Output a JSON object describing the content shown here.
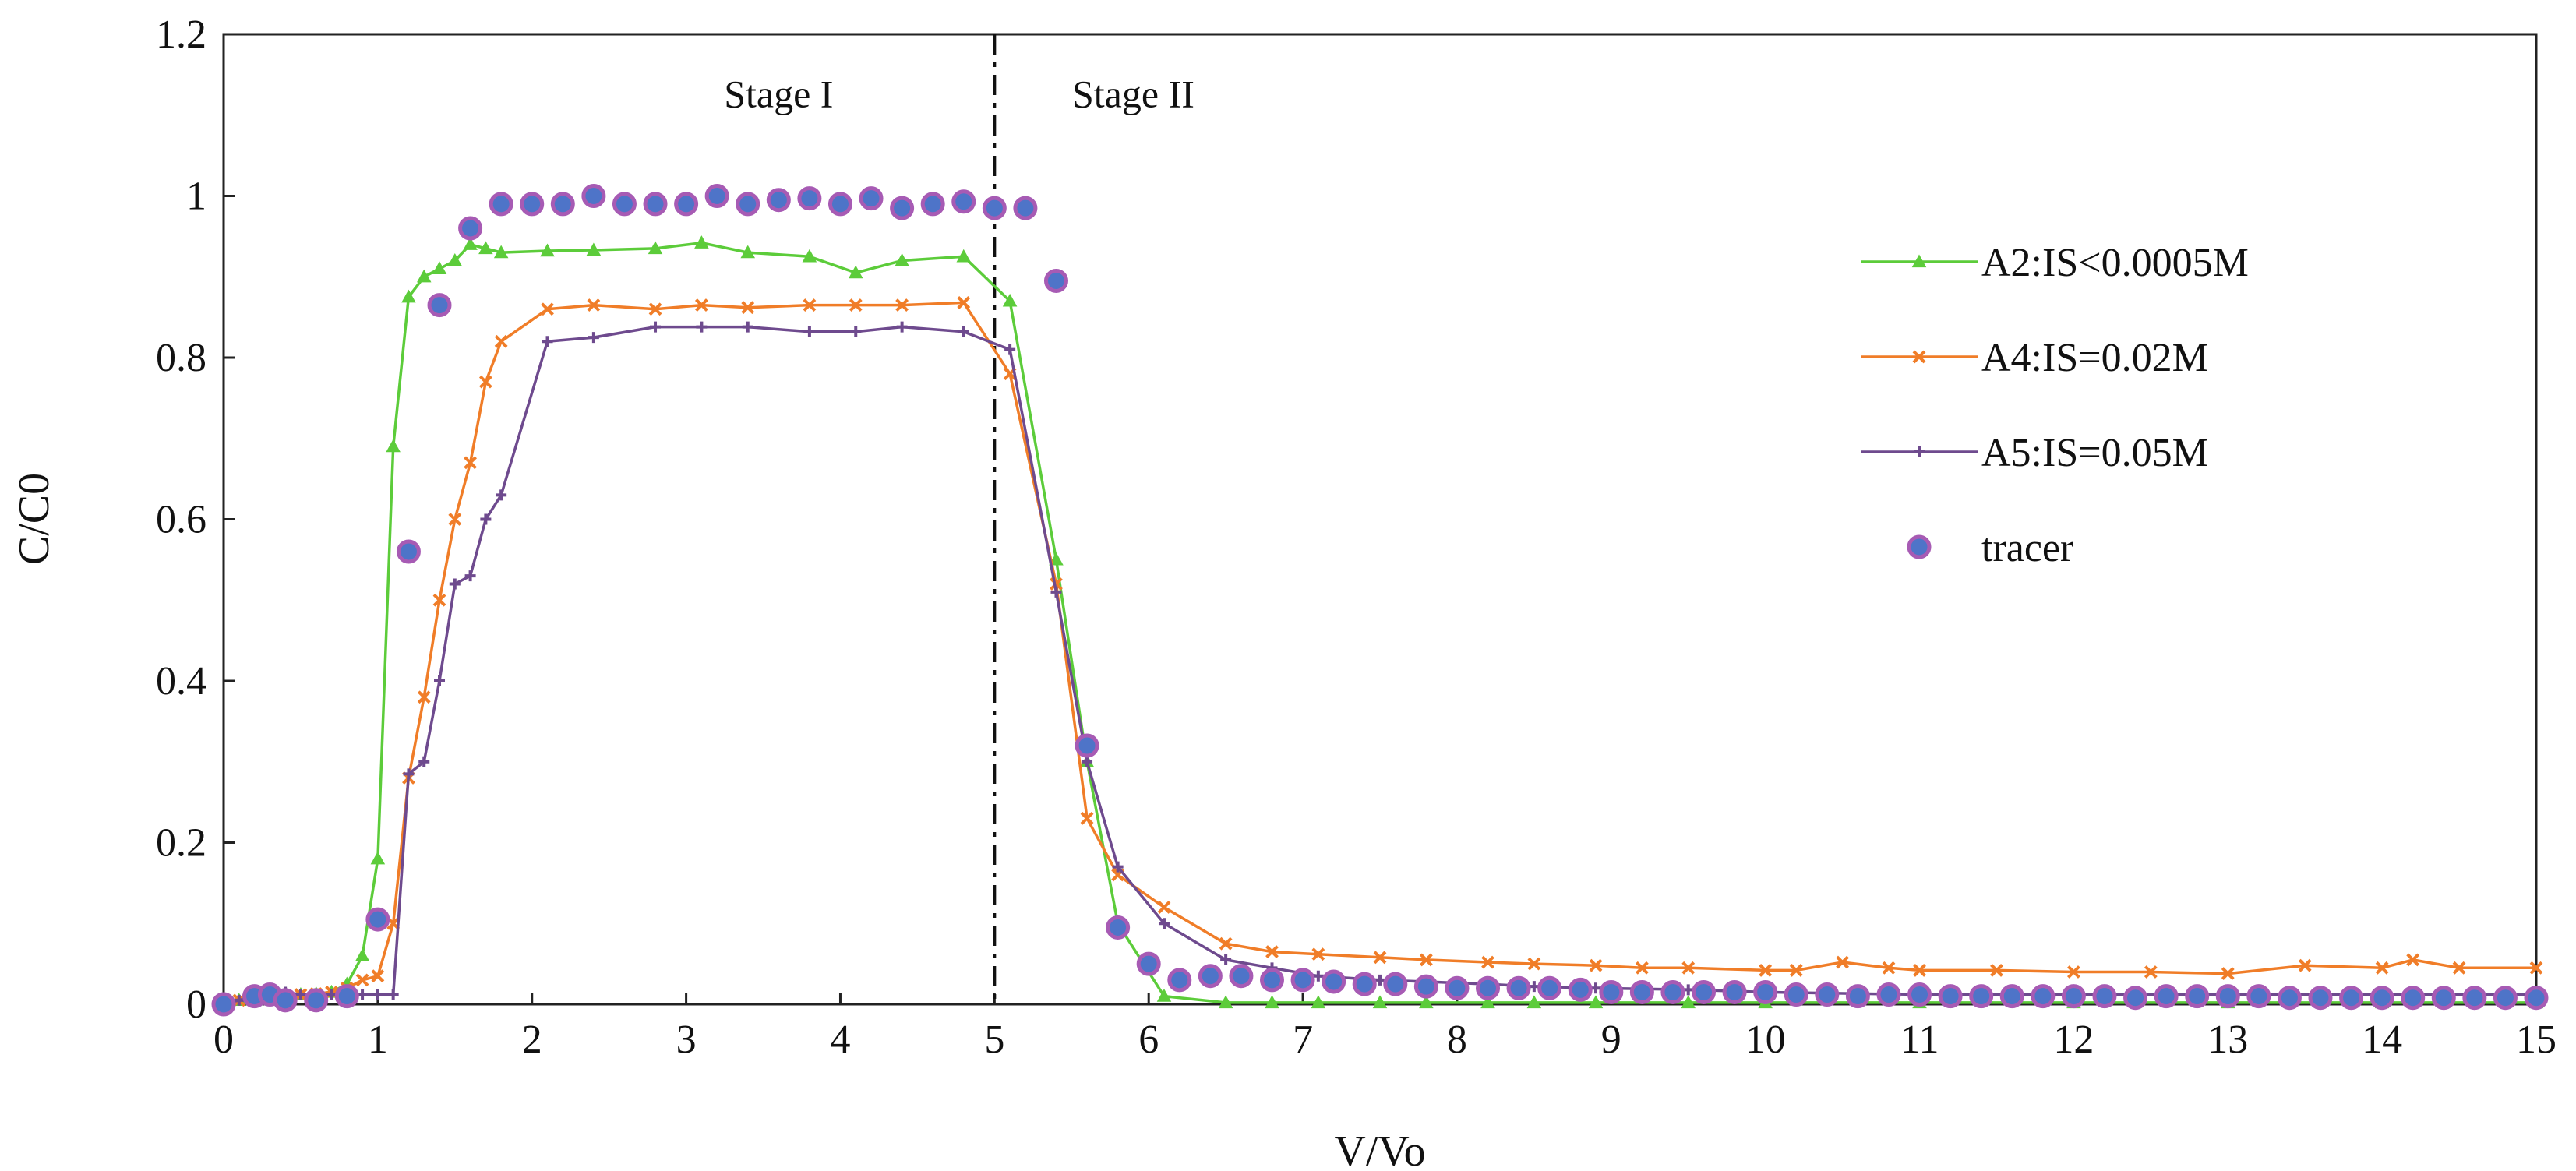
{
  "chart_data": {
    "type": "line",
    "title": "",
    "xlabel": "V/Vo",
    "ylabel": "C/C0",
    "xlim": [
      0,
      15
    ],
    "ylim": [
      0,
      1.2
    ],
    "xticks": [
      0,
      1,
      2,
      3,
      4,
      5,
      6,
      7,
      8,
      9,
      10,
      11,
      12,
      13,
      14,
      15
    ],
    "yticks": [
      0,
      0.2,
      0.4,
      0.6,
      0.8,
      1,
      1.2
    ],
    "ytick_labels": [
      "0",
      "0.2",
      "0.4",
      "0.6",
      "0.8",
      "1",
      "1.2"
    ],
    "grid": false,
    "legend_position": "right",
    "annotations": [
      {
        "text": "Stage I",
        "x": 3.6,
        "y": 1.11
      },
      {
        "text": "Stage II",
        "x": 5.9,
        "y": 1.11
      }
    ],
    "divider_x": 5,
    "series": [
      {
        "name": "A2:IS<0.0005M",
        "color": "#5ccc3a",
        "marker": "triangle",
        "x": [
          0,
          0.1,
          0.2,
          0.3,
          0.4,
          0.5,
          0.6,
          0.7,
          0.8,
          0.9,
          1.0,
          1.1,
          1.2,
          1.3,
          1.4,
          1.5,
          1.6,
          1.7,
          1.8,
          2.1,
          2.4,
          2.8,
          3.1,
          3.4,
          3.8,
          4.1,
          4.4,
          4.8,
          5.1,
          5.4,
          5.6,
          5.8,
          6.1,
          6.5,
          6.8,
          7.1,
          7.5,
          7.8,
          8.2,
          8.5,
          8.9,
          9.5,
          10,
          11,
          12,
          13,
          14,
          15
        ],
        "y": [
          0,
          0.005,
          0.01,
          0.01,
          0.01,
          0.012,
          0.013,
          0.015,
          0.025,
          0.06,
          0.18,
          0.69,
          0.875,
          0.9,
          0.91,
          0.92,
          0.94,
          0.935,
          0.93,
          0.932,
          0.933,
          0.935,
          0.942,
          0.93,
          0.925,
          0.905,
          0.92,
          0.925,
          0.87,
          0.55,
          0.3,
          0.1,
          0.01,
          0.002,
          0.002,
          0.002,
          0.002,
          0.002,
          0.002,
          0.002,
          0.002,
          0.002,
          0.002,
          0.002,
          0.002,
          0.002,
          0.002,
          0.002
        ]
      },
      {
        "name": "A4:IS=0.02M",
        "color": "#f07d28",
        "marker": "x",
        "x": [
          0,
          0.1,
          0.2,
          0.3,
          0.4,
          0.5,
          0.6,
          0.7,
          0.8,
          0.9,
          1.0,
          1.1,
          1.2,
          1.3,
          1.4,
          1.5,
          1.6,
          1.7,
          1.8,
          2.1,
          2.4,
          2.8,
          3.1,
          3.4,
          3.8,
          4.1,
          4.4,
          4.8,
          5.1,
          5.4,
          5.6,
          5.8,
          6.1,
          6.5,
          6.8,
          7.1,
          7.5,
          7.8,
          8.2,
          8.5,
          8.9,
          9.2,
          9.5,
          10,
          10.2,
          10.5,
          10.8,
          11,
          11.5,
          12,
          12.5,
          13,
          13.5,
          14,
          14.2,
          14.5,
          15
        ],
        "y": [
          0,
          0.005,
          0.008,
          0.01,
          0.01,
          0.012,
          0.013,
          0.015,
          0.02,
          0.03,
          0.035,
          0.1,
          0.28,
          0.38,
          0.5,
          0.6,
          0.67,
          0.77,
          0.82,
          0.86,
          0.865,
          0.86,
          0.865,
          0.862,
          0.865,
          0.865,
          0.865,
          0.868,
          0.78,
          0.52,
          0.23,
          0.16,
          0.12,
          0.075,
          0.065,
          0.062,
          0.058,
          0.055,
          0.052,
          0.05,
          0.048,
          0.045,
          0.045,
          0.042,
          0.042,
          0.052,
          0.045,
          0.042,
          0.042,
          0.04,
          0.04,
          0.038,
          0.048,
          0.045,
          0.055,
          0.045,
          0.045
        ]
      },
      {
        "name": "A5:IS=0.05M",
        "color": "#6e4a8e",
        "marker": "plus",
        "x": [
          0,
          0.1,
          0.2,
          0.3,
          0.4,
          0.5,
          0.6,
          0.7,
          0.8,
          0.9,
          1.0,
          1.1,
          1.2,
          1.3,
          1.4,
          1.5,
          1.6,
          1.7,
          1.8,
          2.1,
          2.4,
          2.8,
          3.1,
          3.4,
          3.8,
          4.1,
          4.4,
          4.8,
          5.1,
          5.4,
          5.6,
          5.8,
          6.1,
          6.5,
          6.8,
          7.1,
          7.5,
          7.8,
          8.2,
          8.5,
          8.9,
          9.5,
          10,
          11,
          12,
          13,
          14,
          15
        ],
        "y": [
          0,
          0.005,
          0.01,
          0.012,
          0.015,
          0.012,
          0.01,
          0.012,
          0.012,
          0.012,
          0.012,
          0.012,
          0.285,
          0.3,
          0.4,
          0.52,
          0.53,
          0.6,
          0.63,
          0.82,
          0.825,
          0.838,
          0.838,
          0.838,
          0.832,
          0.832,
          0.838,
          0.832,
          0.81,
          0.51,
          0.3,
          0.17,
          0.1,
          0.055,
          0.045,
          0.035,
          0.03,
          0.028,
          0.025,
          0.022,
          0.02,
          0.018,
          0.015,
          0.012,
          0.012,
          0.012,
          0.012,
          0.012
        ]
      },
      {
        "name": "tracer",
        "color": "#4e74c8",
        "edge": "#a75bb4",
        "marker": "circle",
        "x": [
          0,
          0.2,
          0.3,
          0.4,
          0.6,
          0.8,
          1.0,
          1.2,
          1.4,
          1.6,
          1.8,
          2.0,
          2.2,
          2.4,
          2.6,
          2.8,
          3.0,
          3.2,
          3.4,
          3.6,
          3.8,
          4.0,
          4.2,
          4.4,
          4.6,
          4.8,
          5.0,
          5.2,
          5.4,
          5.6,
          5.8,
          6.0,
          6.2,
          6.4,
          6.6,
          6.8,
          7.0,
          7.2,
          7.4,
          7.6,
          7.8,
          8.0,
          8.2,
          8.4,
          8.6,
          8.8,
          9.0,
          9.2,
          9.4,
          9.6,
          9.8,
          10.0,
          10.2,
          10.4,
          10.6,
          10.8,
          11.0,
          11.2,
          11.4,
          11.6,
          11.8,
          12.0,
          12.2,
          12.4,
          12.6,
          12.8,
          13.0,
          13.2,
          13.4,
          13.6,
          13.8,
          14.0,
          14.2,
          14.4,
          14.6,
          14.8,
          15.0
        ],
        "y": [
          0,
          0.01,
          0.012,
          0.005,
          0.005,
          0.01,
          0.105,
          0.56,
          0.865,
          0.96,
          0.99,
          0.99,
          0.99,
          1.0,
          0.99,
          0.99,
          0.99,
          1.0,
          0.99,
          0.995,
          0.997,
          0.99,
          0.997,
          0.985,
          0.99,
          0.993,
          0.985,
          0.985,
          0.895,
          0.32,
          0.095,
          0.05,
          0.03,
          0.035,
          0.035,
          0.03,
          0.03,
          0.028,
          0.025,
          0.025,
          0.022,
          0.02,
          0.02,
          0.02,
          0.02,
          0.018,
          0.015,
          0.015,
          0.015,
          0.015,
          0.015,
          0.015,
          0.012,
          0.012,
          0.01,
          0.012,
          0.012,
          0.01,
          0.01,
          0.01,
          0.01,
          0.01,
          0.01,
          0.008,
          0.01,
          0.01,
          0.01,
          0.01,
          0.008,
          0.008,
          0.008,
          0.008,
          0.008,
          0.008,
          0.008,
          0.008,
          0.008
        ]
      }
    ]
  }
}
